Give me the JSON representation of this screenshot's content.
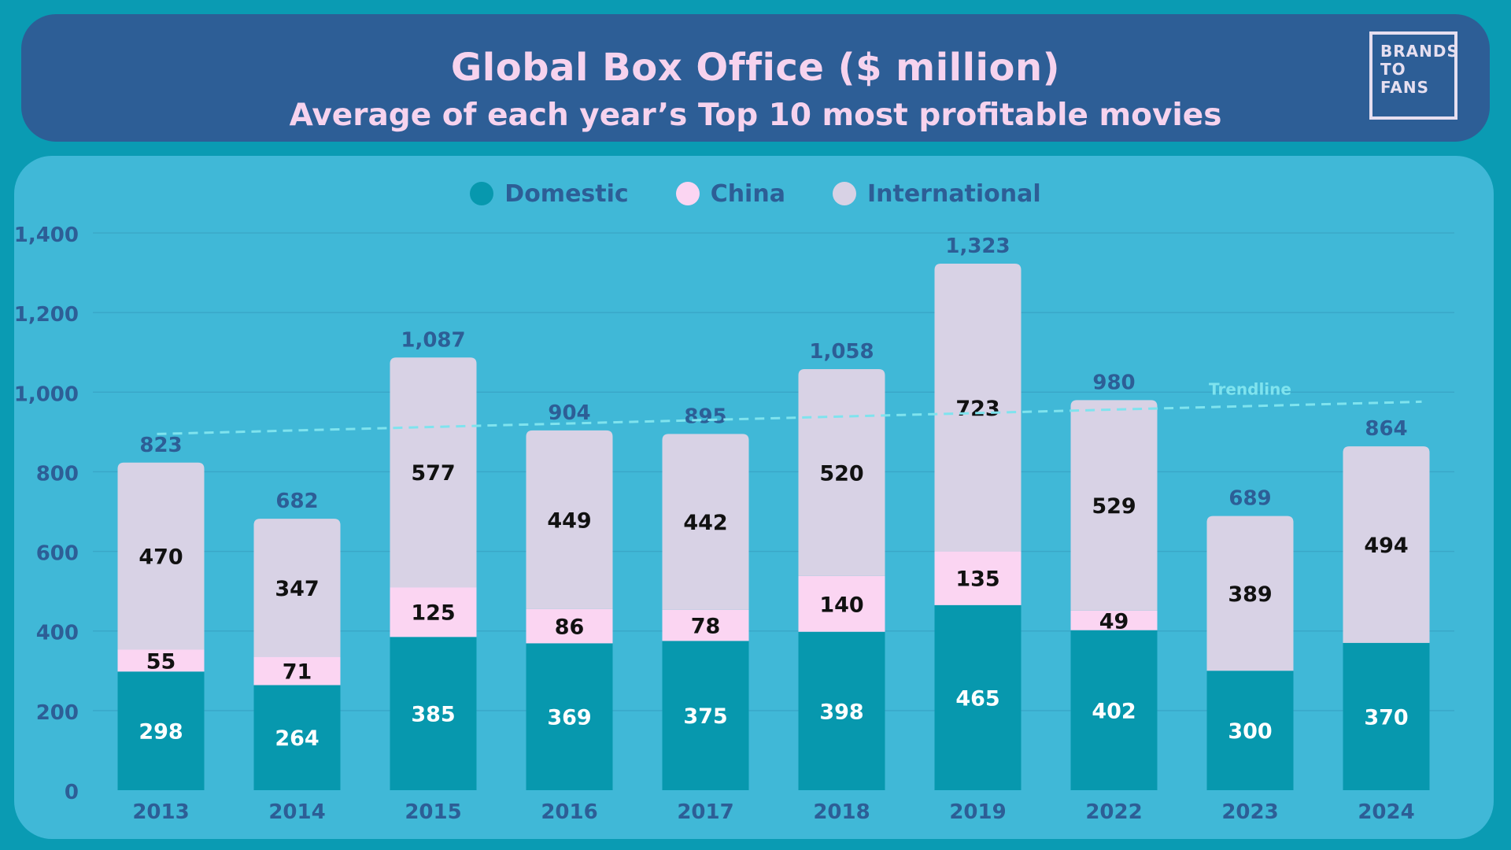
{
  "header": {
    "title": "Global Box Office ($ million)",
    "subtitle": "Average of each year’s Top 10 most profitable movies",
    "logo_lines": [
      "BRANDS",
      "TO",
      "FANS"
    ]
  },
  "colors": {
    "domestic": "#0798ae",
    "china": "#fbd5f2",
    "international": "#d8d2e5",
    "trendline": "#7fe3ee",
    "axis_text": "#2d5e96"
  },
  "trendline_label": "Trendline",
  "chart_data": {
    "type": "bar",
    "stacked": true,
    "categories": [
      "2013",
      "2014",
      "2015",
      "2016",
      "2017",
      "2018",
      "2019",
      "2022",
      "2023",
      "2024"
    ],
    "series": [
      {
        "name": "Domestic",
        "values": [
          298,
          264,
          385,
          369,
          375,
          398,
          465,
          402,
          300,
          370
        ]
      },
      {
        "name": "China",
        "values": [
          55,
          71,
          125,
          86,
          78,
          140,
          135,
          49,
          null,
          null
        ]
      },
      {
        "name": "International",
        "values": [
          470,
          347,
          577,
          449,
          442,
          520,
          723,
          529,
          389,
          494
        ]
      }
    ],
    "totals": [
      823,
      682,
      1087,
      904,
      895,
      1058,
      1323,
      980,
      689,
      864
    ],
    "total_labels": [
      "823",
      "682",
      "1,087",
      "904",
      "895",
      "1,058",
      "1,323",
      "980",
      "689",
      "864"
    ],
    "ylim": [
      0,
      1400
    ],
    "yticks": [
      0,
      200,
      400,
      600,
      800,
      1000,
      1200,
      1400
    ],
    "ytick_labels": [
      "0",
      "200",
      "400",
      "600",
      "800",
      "1,000",
      "1,200",
      "1,400"
    ],
    "trendline": {
      "start": 895,
      "end": 976
    },
    "grid": true,
    "legend_position": "top-center"
  }
}
